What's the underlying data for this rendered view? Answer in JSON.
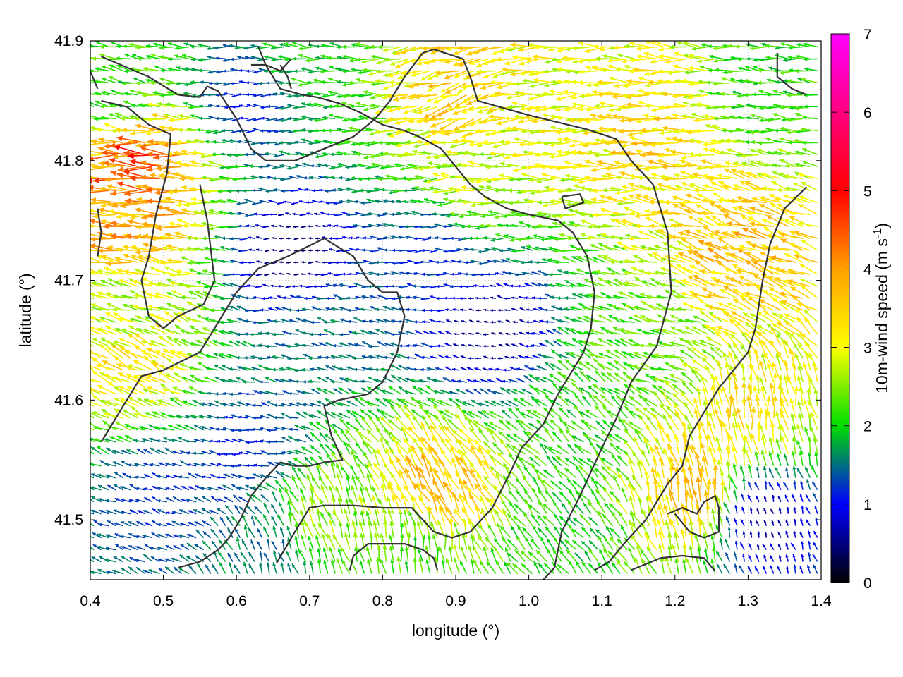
{
  "chart_data": {
    "type": "vector-field",
    "xlabel": "longitude (°)",
    "ylabel": "latitude (°)",
    "xlim": [
      0.4,
      1.4
    ],
    "ylim": [
      41.45,
      41.9
    ],
    "xticks": [
      "0.4",
      "0.5",
      "0.6",
      "0.7",
      "0.8",
      "0.9",
      "1.0",
      "1.1",
      "1.2",
      "1.3",
      "1.4"
    ],
    "yticks": [
      "41.5",
      "41.6",
      "41.7",
      "41.8",
      "41.9"
    ],
    "grid": true,
    "colorbar": {
      "label_main": "10m-wind speed (m s",
      "label_sup": "-1",
      "label_end": ")",
      "range": [
        0,
        7
      ],
      "ticks": [
        "0",
        "1",
        "2",
        "3",
        "4",
        "5",
        "6",
        "7"
      ],
      "colors": [
        "#000000",
        "#0000ff",
        "#00dd00",
        "#ffff00",
        "#ffa000",
        "#ff0000",
        "#ff00ff"
      ]
    },
    "vector_grid": {
      "dlon": 0.01,
      "dlat": 0.01
    },
    "wind_regions": [
      {
        "lon": 0.48,
        "lat": 41.8,
        "speed": 4.6,
        "dir": 178
      },
      {
        "lon": 0.46,
        "lat": 41.74,
        "speed": 3.8,
        "dir": 175
      },
      {
        "lon": 0.45,
        "lat": 41.68,
        "speed": 2.6,
        "dir": 165
      },
      {
        "lon": 0.47,
        "lat": 41.63,
        "speed": 3.2,
        "dir": 150
      },
      {
        "lon": 0.45,
        "lat": 41.85,
        "speed": 2.0,
        "dir": 170
      },
      {
        "lon": 0.62,
        "lat": 41.85,
        "speed": 1.1,
        "dir": 180
      },
      {
        "lon": 0.7,
        "lat": 41.88,
        "speed": 2.0,
        "dir": 175
      },
      {
        "lon": 0.68,
        "lat": 41.72,
        "speed": 0.4,
        "dir": 180
      },
      {
        "lon": 0.72,
        "lat": 41.66,
        "speed": 1.5,
        "dir": 170
      },
      {
        "lon": 0.62,
        "lat": 41.56,
        "speed": 1.1,
        "dir": 175
      },
      {
        "lon": 0.5,
        "lat": 41.52,
        "speed": 1.2,
        "dir": 160
      },
      {
        "lon": 0.88,
        "lat": 41.73,
        "speed": 1.2,
        "dir": 180
      },
      {
        "lon": 0.95,
        "lat": 41.66,
        "speed": 0.5,
        "dir": 170
      },
      {
        "lon": 0.93,
        "lat": 41.78,
        "speed": 2.8,
        "dir": 178
      },
      {
        "lon": 1.05,
        "lat": 41.84,
        "speed": 3.0,
        "dir": 180
      },
      {
        "lon": 1.18,
        "lat": 41.82,
        "speed": 3.4,
        "dir": 178
      },
      {
        "lon": 1.3,
        "lat": 41.72,
        "speed": 3.6,
        "dir": 160
      },
      {
        "lon": 1.33,
        "lat": 41.86,
        "speed": 2.1,
        "dir": 175
      },
      {
        "lon": 1.18,
        "lat": 41.65,
        "speed": 2.3,
        "dir": 165
      },
      {
        "lon": 1.3,
        "lat": 41.58,
        "speed": 3.2,
        "dir": 95
      },
      {
        "lon": 1.23,
        "lat": 41.52,
        "speed": 3.6,
        "dir": 100
      },
      {
        "lon": 1.32,
        "lat": 41.5,
        "speed": 0.6,
        "dir": 110
      },
      {
        "lon": 1.08,
        "lat": 41.58,
        "speed": 2.1,
        "dir": 140
      },
      {
        "lon": 0.88,
        "lat": 41.52,
        "speed": 3.6,
        "dir": 120
      },
      {
        "lon": 0.72,
        "lat": 41.5,
        "speed": 2.6,
        "dir": 110
      },
      {
        "lon": 0.85,
        "lat": 41.47,
        "speed": 2.2,
        "dir": 95
      },
      {
        "lon": 1.05,
        "lat": 41.48,
        "speed": 2.0,
        "dir": 130
      },
      {
        "lon": 0.65,
        "lat": 41.47,
        "speed": 1.5,
        "dir": 110
      },
      {
        "lon": 0.91,
        "lat": 41.86,
        "speed": 3.4,
        "dir": 200
      }
    ],
    "contours": [
      [
        [
          0.415,
          41.887
        ],
        [
          0.48,
          41.87
        ],
        [
          0.52,
          41.855
        ],
        [
          0.55,
          41.853
        ],
        [
          0.56,
          41.862
        ],
        [
          0.575,
          41.858
        ],
        [
          0.6,
          41.835
        ],
        [
          0.62,
          41.81
        ],
        [
          0.64,
          41.8
        ],
        [
          0.68,
          41.8
        ],
        [
          0.72,
          41.81
        ],
        [
          0.76,
          41.82
        ],
        [
          0.79,
          41.835
        ],
        [
          0.81,
          41.85
        ],
        [
          0.83,
          41.87
        ],
        [
          0.855,
          41.89
        ],
        [
          0.87,
          41.893
        ],
        [
          0.91,
          41.885
        ],
        [
          0.92,
          41.87
        ],
        [
          0.93,
          41.85
        ],
        [
          1.0,
          41.838
        ],
        [
          1.08,
          41.826
        ],
        [
          1.12,
          41.818
        ],
        [
          1.14,
          41.8
        ],
        [
          1.17,
          41.78
        ],
        [
          1.19,
          41.74
        ],
        [
          1.195,
          41.69
        ],
        [
          1.175,
          41.645
        ],
        [
          1.14,
          41.615
        ],
        [
          1.12,
          41.585
        ],
        [
          1.1,
          41.56
        ],
        [
          1.07,
          41.52
        ],
        [
          1.045,
          41.49
        ],
        [
          1.035,
          41.46
        ],
        [
          1.02,
          41.45
        ]
      ],
      [
        [
          0.415,
          41.85
        ],
        [
          0.45,
          41.845
        ],
        [
          0.48,
          41.83
        ],
        [
          0.51,
          41.822
        ],
        [
          0.505,
          41.79
        ],
        [
          0.49,
          41.755
        ],
        [
          0.48,
          41.72
        ],
        [
          0.47,
          41.7
        ],
        [
          0.48,
          41.67
        ],
        [
          0.5,
          41.66
        ],
        [
          0.52,
          41.67
        ],
        [
          0.555,
          41.68
        ],
        [
          0.57,
          41.7
        ],
        [
          0.56,
          41.75
        ],
        [
          0.55,
          41.78
        ]
      ],
      [
        [
          0.415,
          41.565
        ],
        [
          0.44,
          41.59
        ],
        [
          0.47,
          41.62
        ],
        [
          0.5,
          41.625
        ],
        [
          0.55,
          41.64
        ],
        [
          0.58,
          41.67
        ],
        [
          0.6,
          41.69
        ],
        [
          0.63,
          41.71
        ],
        [
          0.67,
          41.72
        ],
        [
          0.72,
          41.735
        ],
        [
          0.76,
          41.72
        ],
        [
          0.78,
          41.7
        ],
        [
          0.8,
          41.69
        ],
        [
          0.82,
          41.69
        ],
        [
          0.83,
          41.67
        ],
        [
          0.82,
          41.64
        ],
        [
          0.8,
          41.615
        ],
        [
          0.78,
          41.605
        ],
        [
          0.74,
          41.6
        ],
        [
          0.72,
          41.595
        ],
        [
          0.73,
          41.57
        ],
        [
          0.745,
          41.55
        ],
        [
          0.72,
          41.548
        ],
        [
          0.7,
          41.545
        ],
        [
          0.68,
          41.545
        ],
        [
          0.66,
          41.548
        ],
        [
          0.64,
          41.535
        ],
        [
          0.62,
          41.52
        ],
        [
          0.605,
          41.5
        ],
        [
          0.59,
          41.485
        ],
        [
          0.575,
          41.475
        ],
        [
          0.55,
          41.465
        ],
        [
          0.52,
          41.46
        ]
      ],
      [
        [
          0.655,
          41.464
        ],
        [
          0.68,
          41.49
        ],
        [
          0.7,
          41.51
        ],
        [
          0.72,
          41.512
        ],
        [
          0.76,
          41.512
        ],
        [
          0.8,
          41.51
        ],
        [
          0.84,
          41.51
        ],
        [
          0.87,
          41.49
        ],
        [
          0.895,
          41.485
        ],
        [
          0.92,
          41.49
        ],
        [
          0.95,
          41.51
        ],
        [
          0.975,
          41.54
        ],
        [
          0.99,
          41.56
        ],
        [
          1.02,
          41.58
        ],
        [
          1.04,
          41.605
        ],
        [
          1.06,
          41.625
        ],
        [
          1.075,
          41.64
        ],
        [
          1.085,
          41.66
        ],
        [
          1.09,
          41.69
        ],
        [
          1.08,
          41.72
        ],
        [
          1.06,
          41.74
        ],
        [
          1.04,
          41.75
        ],
        [
          1.0,
          41.755
        ],
        [
          0.97,
          41.76
        ],
        [
          0.94,
          41.77
        ],
        [
          0.92,
          41.78
        ],
        [
          0.9,
          41.795
        ],
        [
          0.88,
          41.81
        ],
        [
          0.85,
          41.82
        ],
        [
          0.83,
          41.825
        ],
        [
          0.8,
          41.83
        ],
        [
          0.77,
          41.84
        ],
        [
          0.74,
          41.848
        ],
        [
          0.71,
          41.853
        ],
        [
          0.69,
          41.855
        ],
        [
          0.66,
          41.86
        ],
        [
          0.64,
          41.88
        ],
        [
          0.63,
          41.895
        ]
      ],
      [
        [
          0.755,
          41.458
        ],
        [
          0.76,
          41.47
        ],
        [
          0.78,
          41.48
        ],
        [
          0.8,
          41.48
        ],
        [
          0.83,
          41.48
        ],
        [
          0.855,
          41.475
        ],
        [
          0.87,
          41.468
        ],
        [
          0.875,
          41.458
        ]
      ],
      [
        [
          1.045,
          41.77
        ],
        [
          1.07,
          41.772
        ],
        [
          1.075,
          41.765
        ],
        [
          1.05,
          41.76
        ],
        [
          1.045,
          41.77
        ]
      ],
      [
        [
          1.19,
          41.505
        ],
        [
          1.21,
          41.51
        ],
        [
          1.23,
          41.505
        ],
        [
          1.24,
          41.515
        ],
        [
          1.255,
          41.52
        ],
        [
          1.26,
          41.51
        ],
        [
          1.26,
          41.49
        ],
        [
          1.24,
          41.485
        ],
        [
          1.22,
          41.49
        ],
        [
          1.2,
          41.505
        ]
      ],
      [
        [
          1.38,
          41.778
        ],
        [
          1.35,
          41.76
        ],
        [
          1.33,
          41.73
        ],
        [
          1.32,
          41.7
        ],
        [
          1.31,
          41.66
        ],
        [
          1.3,
          41.64
        ],
        [
          1.28,
          41.625
        ],
        [
          1.26,
          41.61
        ],
        [
          1.24,
          41.59
        ],
        [
          1.22,
          41.57
        ],
        [
          1.21,
          41.545
        ],
        [
          1.19,
          41.53
        ],
        [
          1.18,
          41.52
        ],
        [
          1.16,
          41.5
        ],
        [
          1.13,
          41.48
        ],
        [
          1.11,
          41.465
        ],
        [
          1.09,
          41.458
        ]
      ],
      [
        [
          1.14,
          41.458
        ],
        [
          1.18,
          41.468
        ],
        [
          1.21,
          41.47
        ],
        [
          1.24,
          41.468
        ],
        [
          1.255,
          41.457
        ]
      ],
      [
        [
          1.34,
          41.89
        ],
        [
          1.34,
          41.87
        ],
        [
          1.36,
          41.86
        ],
        [
          1.38,
          41.855
        ]
      ],
      [
        [
          0.395,
          41.882
        ],
        [
          0.41,
          41.86
        ]
      ],
      [
        [
          0.41,
          41.76
        ],
        [
          0.415,
          41.74
        ],
        [
          0.41,
          41.72
        ]
      ],
      [
        [
          0.62,
          41.88
        ],
        [
          0.64,
          41.88
        ],
        [
          0.66,
          41.875
        ],
        [
          0.675,
          41.885
        ]
      ],
      [
        [
          0.66,
          41.88
        ],
        [
          0.67,
          41.87
        ],
        [
          0.675,
          41.86
        ]
      ]
    ]
  }
}
